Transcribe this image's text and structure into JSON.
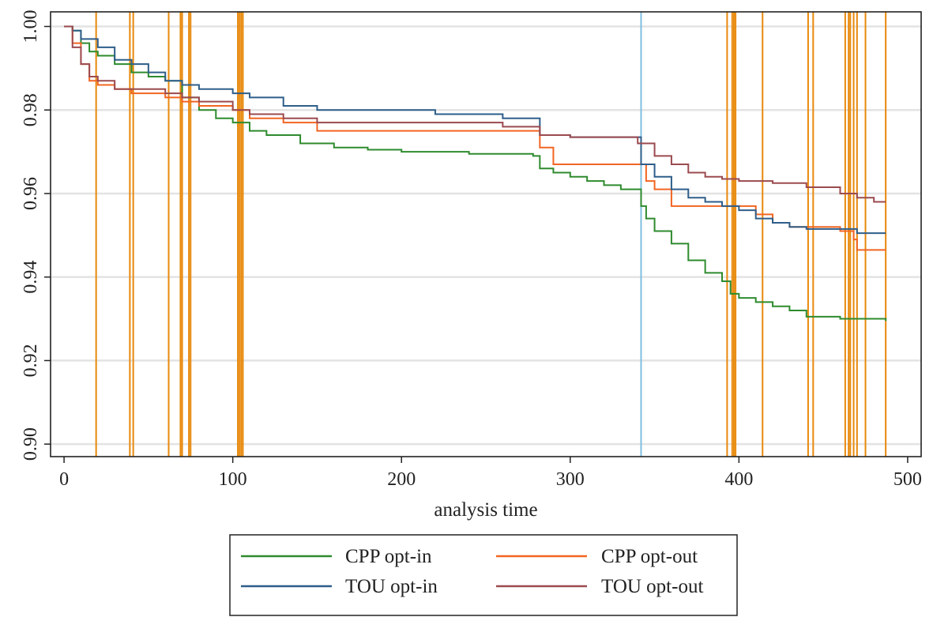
{
  "chart_data": {
    "type": "line",
    "title": "",
    "xlabel": "analysis time",
    "ylabel": "",
    "xlim": [
      -8,
      508
    ],
    "ylim": [
      0.897,
      1.0035
    ],
    "xticks": [
      0,
      100,
      200,
      300,
      400,
      500
    ],
    "yticks": [
      0.9,
      0.92,
      0.94,
      0.96,
      0.98,
      1.0
    ],
    "ytick_labels": [
      "0.90",
      "0.92",
      "0.94",
      "0.96",
      "0.98",
      "1.00"
    ],
    "grid": "horizontal",
    "plot_style": "step",
    "legend": {
      "position": "bottom",
      "columns": 2
    },
    "series": [
      {
        "name": "CPP opt-in",
        "color": "#2e8b2e",
        "x": [
          0,
          5,
          10,
          15,
          20,
          30,
          40,
          50,
          60,
          70,
          80,
          90,
          100,
          110,
          120,
          140,
          160,
          180,
          200,
          220,
          240,
          260,
          278,
          282,
          290,
          300,
          310,
          320,
          330,
          340,
          342,
          345,
          350,
          360,
          370,
          380,
          390,
          395,
          400,
          410,
          420,
          430,
          440,
          460,
          487
        ],
        "y": [
          1.0,
          0.999,
          0.996,
          0.994,
          0.993,
          0.991,
          0.989,
          0.988,
          0.987,
          0.983,
          0.98,
          0.978,
          0.977,
          0.975,
          0.974,
          0.972,
          0.971,
          0.9705,
          0.97,
          0.97,
          0.9695,
          0.9695,
          0.969,
          0.966,
          0.965,
          0.964,
          0.963,
          0.962,
          0.961,
          0.961,
          0.957,
          0.954,
          0.951,
          0.948,
          0.944,
          0.941,
          0.939,
          0.936,
          0.935,
          0.934,
          0.933,
          0.932,
          0.9305,
          0.93,
          0.9295
        ]
      },
      {
        "name": "CPP opt-out",
        "color": "#f26522",
        "x": [
          0,
          5,
          10,
          15,
          20,
          30,
          40,
          60,
          70,
          80,
          100,
          110,
          130,
          150,
          180,
          220,
          260,
          278,
          282,
          290,
          300,
          320,
          340,
          345,
          350,
          360,
          380,
          400,
          410,
          420,
          430,
          440,
          460,
          468,
          470,
          487
        ],
        "y": [
          1.0,
          0.996,
          0.991,
          0.987,
          0.986,
          0.985,
          0.984,
          0.983,
          0.982,
          0.981,
          0.98,
          0.978,
          0.977,
          0.975,
          0.975,
          0.975,
          0.975,
          0.975,
          0.971,
          0.967,
          0.967,
          0.967,
          0.967,
          0.963,
          0.961,
          0.957,
          0.957,
          0.957,
          0.955,
          0.953,
          0.952,
          0.952,
          0.951,
          0.949,
          0.9465,
          0.9465
        ]
      },
      {
        "name": "TOU opt-in",
        "color": "#2e5e8a",
        "x": [
          0,
          5,
          10,
          20,
          30,
          40,
          50,
          60,
          70,
          80,
          100,
          110,
          130,
          150,
          180,
          220,
          260,
          278,
          282,
          290,
          300,
          320,
          340,
          342,
          350,
          360,
          370,
          380,
          390,
          400,
          410,
          420,
          430,
          440,
          460,
          470,
          487
        ],
        "y": [
          1.0,
          0.999,
          0.997,
          0.995,
          0.992,
          0.991,
          0.989,
          0.987,
          0.986,
          0.985,
          0.984,
          0.983,
          0.981,
          0.98,
          0.98,
          0.979,
          0.978,
          0.978,
          0.974,
          0.974,
          0.9735,
          0.9735,
          0.9735,
          0.967,
          0.964,
          0.961,
          0.959,
          0.958,
          0.957,
          0.956,
          0.954,
          0.953,
          0.952,
          0.9515,
          0.9515,
          0.9505,
          0.9505
        ]
      },
      {
        "name": "TOU opt-out",
        "color": "#9b4a4f",
        "x": [
          0,
          5,
          10,
          15,
          20,
          30,
          40,
          50,
          60,
          70,
          80,
          100,
          110,
          130,
          150,
          180,
          220,
          260,
          278,
          282,
          290,
          300,
          320,
          340,
          350,
          360,
          370,
          380,
          390,
          400,
          420,
          440,
          460,
          470,
          480,
          487
        ],
        "y": [
          1.0,
          0.995,
          0.991,
          0.988,
          0.987,
          0.985,
          0.985,
          0.985,
          0.984,
          0.983,
          0.982,
          0.98,
          0.979,
          0.978,
          0.977,
          0.977,
          0.977,
          0.976,
          0.976,
          0.974,
          0.974,
          0.9735,
          0.9735,
          0.972,
          0.969,
          0.967,
          0.965,
          0.964,
          0.9635,
          0.963,
          0.9625,
          0.9615,
          0.96,
          0.959,
          0.958,
          0.958
        ]
      }
    ],
    "reference_lines": {
      "vertical": [
        {
          "color": "#e8890c",
          "x": [
            19,
            39,
            41,
            62,
            69,
            70,
            74,
            75,
            103,
            104,
            105,
            106,
            393,
            396,
            397,
            398,
            414,
            441,
            444,
            463,
            465,
            466,
            468,
            470,
            475,
            487
          ]
        },
        {
          "color": "#7fbfe0",
          "x": [
            342
          ]
        }
      ]
    }
  }
}
